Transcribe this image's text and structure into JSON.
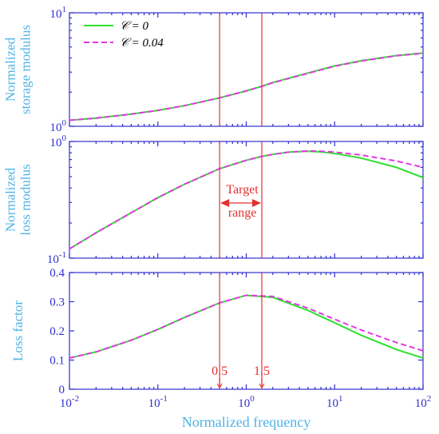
{
  "chart_data": [
    {
      "type": "line",
      "yscale": "log",
      "ylabel_lines": [
        "Normalized",
        "storage modulus"
      ],
      "ylim": [
        1,
        10
      ],
      "yticks": [
        {
          "value": 1,
          "base": "10",
          "exp": "0"
        },
        {
          "value": 10,
          "base": "10",
          "exp": "1"
        }
      ],
      "series": [
        {
          "name": "𝒞 = 0",
          "color": "#2ee02e",
          "dash": "solid",
          "x": [
            0.01,
            0.02,
            0.05,
            0.1,
            0.2,
            0.5,
            1,
            1.5,
            2,
            5,
            10,
            20,
            50,
            100
          ],
          "y": [
            1.13,
            1.18,
            1.28,
            1.38,
            1.52,
            1.78,
            2.05,
            2.25,
            2.43,
            2.95,
            3.4,
            3.78,
            4.2,
            4.42
          ]
        },
        {
          "name": "𝒞 = 0.04",
          "color": "#e535e5",
          "dash": "dashed",
          "x": [
            0.01,
            0.02,
            0.05,
            0.1,
            0.2,
            0.5,
            1,
            1.5,
            2,
            5,
            10,
            20,
            50,
            100
          ],
          "y": [
            1.13,
            1.18,
            1.28,
            1.38,
            1.52,
            1.78,
            2.05,
            2.25,
            2.42,
            2.93,
            3.38,
            3.76,
            4.18,
            4.4
          ]
        }
      ],
      "legend": "top-left"
    },
    {
      "type": "line",
      "yscale": "log",
      "ylabel_lines": [
        "Normalized",
        "loss modulus"
      ],
      "ylim": [
        0.1,
        1
      ],
      "yticks": [
        {
          "value": 0.1,
          "base": "10",
          "exp": "-1"
        },
        {
          "value": 1,
          "base": "10",
          "exp": "0"
        }
      ],
      "series": [
        {
          "name": "𝒞 = 0",
          "color": "#2ee02e",
          "dash": "solid",
          "x": [
            0.01,
            0.02,
            0.05,
            0.1,
            0.2,
            0.5,
            1,
            1.5,
            2,
            3,
            5,
            7,
            10,
            20,
            50,
            100
          ],
          "y": [
            0.12,
            0.165,
            0.245,
            0.33,
            0.43,
            0.585,
            0.69,
            0.745,
            0.775,
            0.81,
            0.825,
            0.815,
            0.79,
            0.72,
            0.6,
            0.49
          ]
        },
        {
          "name": "𝒞 = 0.04",
          "color": "#e535e5",
          "dash": "dashed",
          "x": [
            0.01,
            0.02,
            0.05,
            0.1,
            0.2,
            0.5,
            1,
            1.5,
            2,
            3,
            5,
            7,
            10,
            20,
            50,
            100
          ],
          "y": [
            0.12,
            0.165,
            0.245,
            0.33,
            0.43,
            0.585,
            0.69,
            0.745,
            0.775,
            0.81,
            0.83,
            0.825,
            0.81,
            0.765,
            0.68,
            0.6
          ]
        }
      ]
    },
    {
      "type": "line",
      "yscale": "linear",
      "ylabel_lines": [
        "Loss factor"
      ],
      "ylim": [
        0,
        0.4
      ],
      "xlabel": "Normalized frequency",
      "xscale": "log",
      "xlim": [
        0.01,
        100
      ],
      "yticks": [
        {
          "value": 0,
          "label": "0"
        },
        {
          "value": 0.1,
          "label": "0.1"
        },
        {
          "value": 0.2,
          "label": "0.2"
        },
        {
          "value": 0.3,
          "label": "0.3"
        },
        {
          "value": 0.4,
          "label": "0.4"
        }
      ],
      "xticks": [
        {
          "value": 0.01,
          "base": "10",
          "exp": "-2"
        },
        {
          "value": 0.1,
          "base": "10",
          "exp": "-1"
        },
        {
          "value": 1,
          "base": "10",
          "exp": "0"
        },
        {
          "value": 10,
          "base": "10",
          "exp": "1"
        },
        {
          "value": 100,
          "base": "10",
          "exp": "2"
        }
      ],
      "series": [
        {
          "name": "𝒞 = 0",
          "color": "#2ee02e",
          "dash": "solid",
          "x": [
            0.01,
            0.02,
            0.05,
            0.1,
            0.2,
            0.5,
            1,
            2,
            5,
            10,
            20,
            50,
            100
          ],
          "y": [
            0.107,
            0.128,
            0.168,
            0.205,
            0.246,
            0.296,
            0.322,
            0.315,
            0.27,
            0.228,
            0.185,
            0.136,
            0.107
          ]
        },
        {
          "name": "𝒞 = 0.04",
          "color": "#e535e5",
          "dash": "dashed",
          "x": [
            0.01,
            0.02,
            0.05,
            0.1,
            0.2,
            0.5,
            1,
            2,
            5,
            10,
            20,
            50,
            100
          ],
          "y": [
            0.107,
            0.128,
            0.168,
            0.205,
            0.246,
            0.296,
            0.322,
            0.318,
            0.278,
            0.24,
            0.203,
            0.16,
            0.132
          ]
        }
      ]
    }
  ],
  "annotations": {
    "target_lines": [
      0.5,
      1.5
    ],
    "target_label_lines": [
      "Target",
      "range"
    ],
    "target_line_labels": [
      "0.5",
      "1.5"
    ]
  }
}
